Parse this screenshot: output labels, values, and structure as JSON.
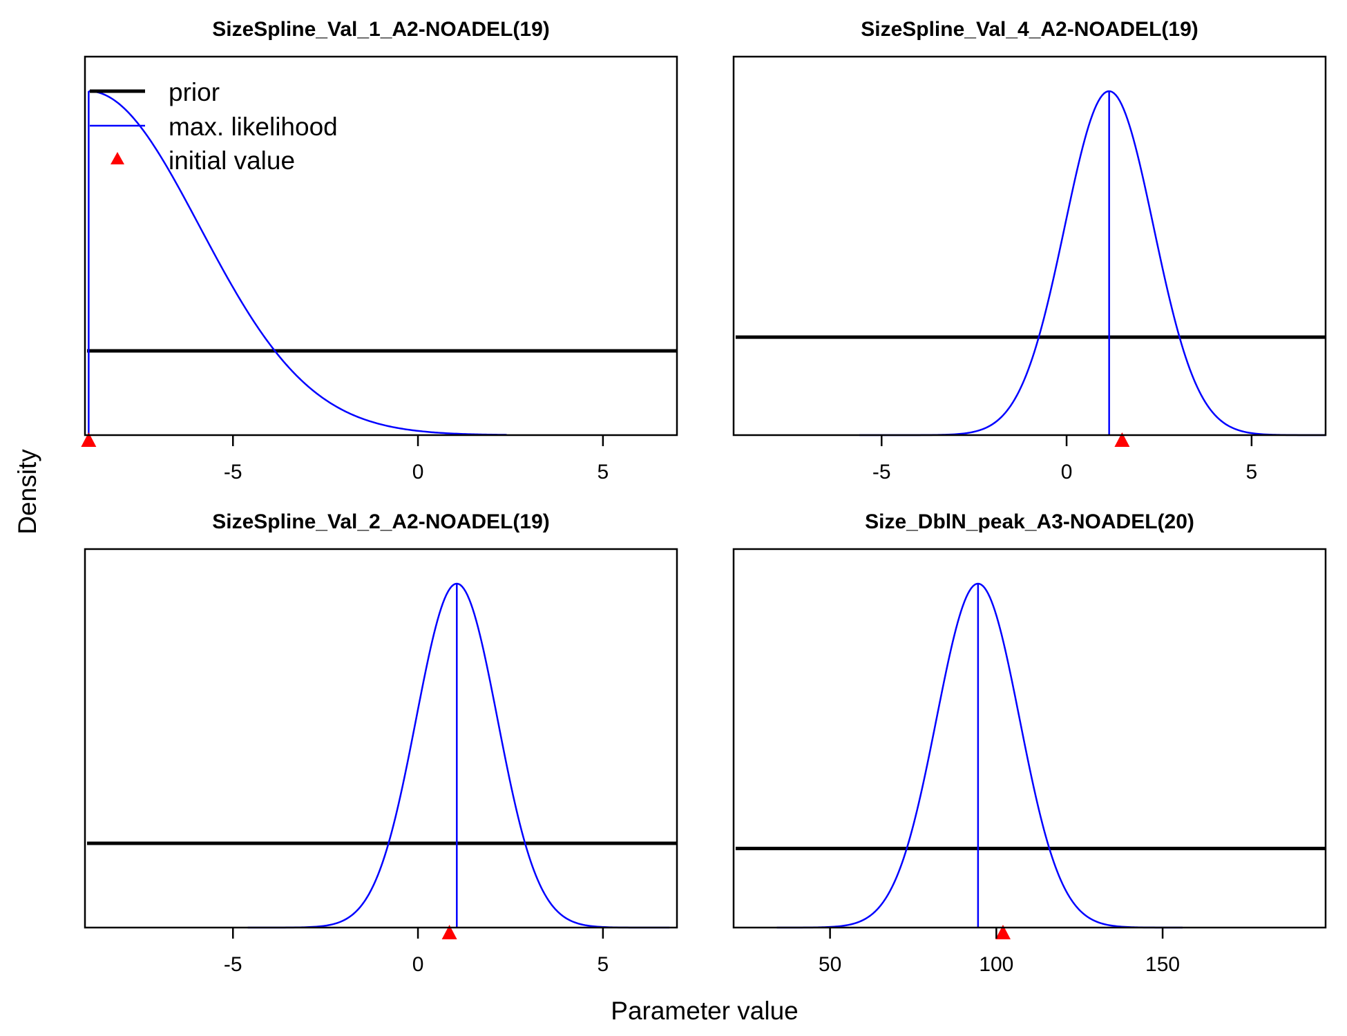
{
  "chart_data": {
    "type": "line",
    "xlabel": "Parameter value",
    "ylabel": "Density",
    "legend": {
      "placement": "top-left",
      "entries": [
        {
          "label": "prior",
          "color": "#000000"
        },
        {
          "label": "max. likelihood",
          "color": "#0000ff"
        },
        {
          "label": "initial value",
          "color": "#ff0000"
        }
      ]
    },
    "panels": [
      {
        "title": "SizeSpline_Val_1_A2-NOADEL(19)",
        "xlim": [
          -9,
          7
        ],
        "xticks": [
          -5,
          0,
          5
        ],
        "tick_labels": [
          "-5",
          "0",
          "5"
        ],
        "prior_level": 0.245,
        "mle": -8.9,
        "sd": 3.0,
        "curve_from": -8.9,
        "curve_to": 2.4,
        "initial_value": -8.9
      },
      {
        "title": "SizeSpline_Val_4_A2-NOADEL(19)",
        "xlim": [
          -9,
          7
        ],
        "xticks": [
          -5,
          0,
          5
        ],
        "tick_labels": [
          "-5",
          "0",
          "5"
        ],
        "prior_level": 0.285,
        "mle": 1.15,
        "sd": 1.2,
        "curve_from": -5.6,
        "curve_to": 7,
        "initial_value": 1.5
      },
      {
        "title": "SizeSpline_Val_2_A2-NOADEL(19)",
        "xlim": [
          -9,
          7
        ],
        "xticks": [
          -5,
          0,
          5
        ],
        "tick_labels": [
          "-5",
          "0",
          "5"
        ],
        "prior_level": 0.245,
        "mle": 1.05,
        "sd": 1.1,
        "curve_from": -4.6,
        "curve_to": 6.8,
        "initial_value": 0.85
      },
      {
        "title": "Size_DblN_peak_A3-NOADEL(20)",
        "xlim": [
          21,
          199
        ],
        "xticks": [
          50,
          100,
          150
        ],
        "tick_labels": [
          "50",
          "100",
          "150"
        ],
        "prior_level": 0.23,
        "mle": 94.5,
        "sd": 12.5,
        "curve_from": 34,
        "curve_to": 156,
        "initial_value": 102
      }
    ]
  }
}
